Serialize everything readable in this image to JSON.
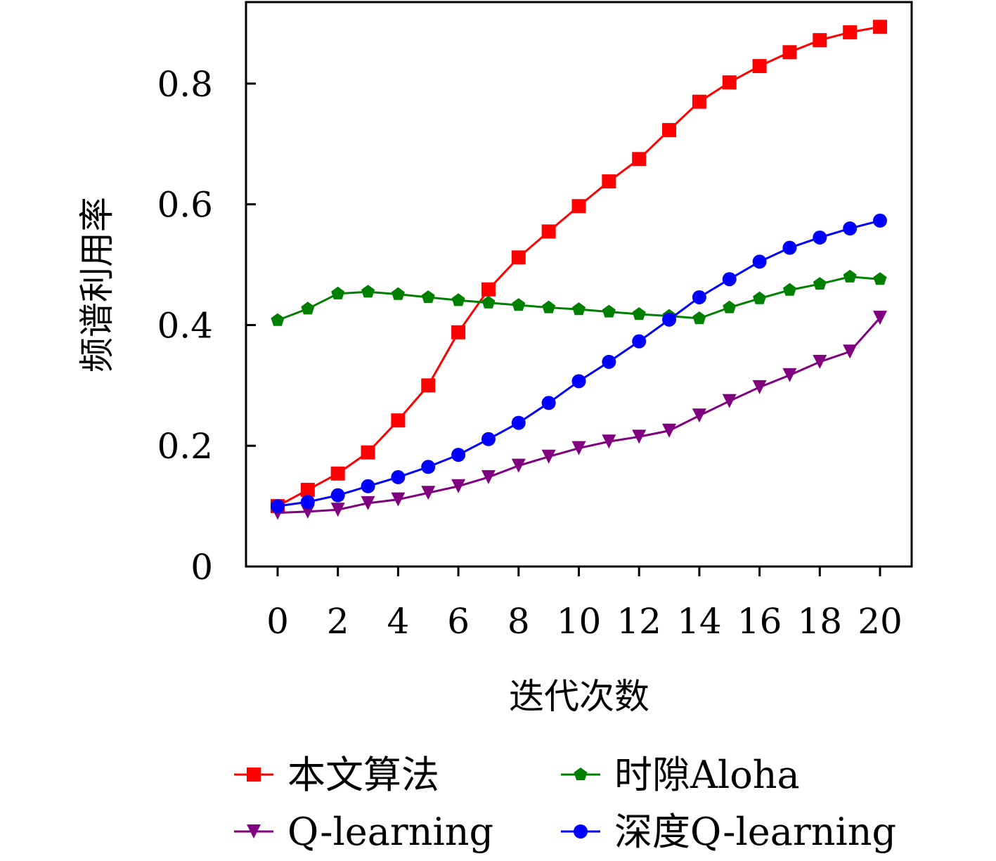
{
  "chart_data": {
    "type": "line",
    "title": "",
    "xlabel": "迭代次数",
    "ylabel": "频谱利用率",
    "xlim": [
      -1.05,
      21.05
    ],
    "ylim": [
      0,
      0.935
    ],
    "xticks": [
      0,
      2,
      4,
      6,
      8,
      10,
      12,
      14,
      16,
      18,
      20
    ],
    "xtick_labels": [
      "0",
      "2",
      "4",
      "6",
      "8",
      "10",
      "12",
      "14",
      "16",
      "18",
      "20"
    ],
    "yticks": [
      0,
      0.2,
      0.4,
      0.6,
      0.8
    ],
    "ytick_labels": [
      "0",
      "0.2",
      "0.4",
      "0.6",
      "0.8"
    ],
    "grid": false,
    "legend_placement": "bottom",
    "x": [
      0,
      1,
      2,
      3,
      4,
      5,
      6,
      7,
      8,
      9,
      10,
      11,
      12,
      13,
      14,
      15,
      16,
      17,
      18,
      19,
      20
    ],
    "series": [
      {
        "name": "本文算法",
        "color": "#ff0000",
        "marker": "square",
        "values": [
          0.1,
          0.127,
          0.154,
          0.189,
          0.242,
          0.3,
          0.388,
          0.459,
          0.512,
          0.555,
          0.597,
          0.638,
          0.675,
          0.723,
          0.77,
          0.802,
          0.829,
          0.852,
          0.872,
          0.885,
          0.894
        ]
      },
      {
        "name": "时隙Aloha",
        "color": "#008000",
        "marker": "pentagon",
        "values": [
          0.408,
          0.427,
          0.452,
          0.455,
          0.451,
          0.446,
          0.441,
          0.437,
          0.433,
          0.429,
          0.426,
          0.422,
          0.418,
          0.415,
          0.411,
          0.429,
          0.444,
          0.458,
          0.468,
          0.48,
          0.476
        ]
      },
      {
        "name": "Q-learning",
        "color": "#800080",
        "marker": "triangle-down",
        "values": [
          0.089,
          0.091,
          0.094,
          0.105,
          0.111,
          0.122,
          0.133,
          0.148,
          0.167,
          0.182,
          0.196,
          0.207,
          0.215,
          0.225,
          0.25,
          0.274,
          0.297,
          0.317,
          0.339,
          0.356,
          0.412
        ]
      },
      {
        "name": "深度Q-learning",
        "color": "#0000ff",
        "marker": "circle",
        "values": [
          0.1,
          0.107,
          0.118,
          0.133,
          0.148,
          0.165,
          0.185,
          0.211,
          0.238,
          0.271,
          0.307,
          0.339,
          0.373,
          0.409,
          0.446,
          0.476,
          0.505,
          0.528,
          0.545,
          0.56,
          0.573
        ]
      }
    ]
  }
}
